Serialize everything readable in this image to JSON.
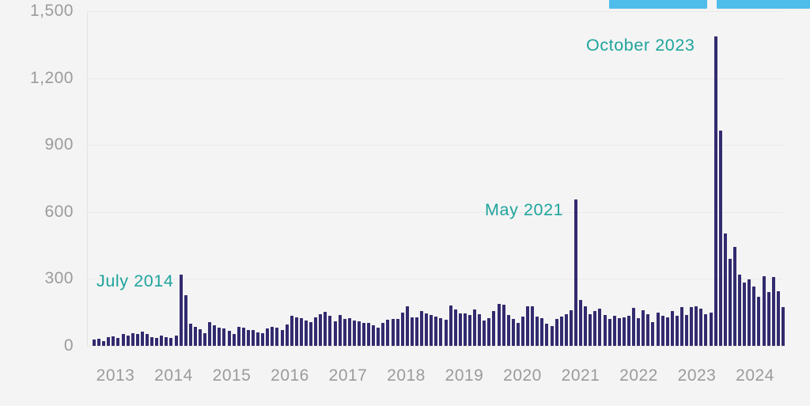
{
  "header": {
    "top_right_chips": [
      {
        "name": "chip-1",
        "label": "",
        "color": "#4fbde9"
      },
      {
        "name": "chip-2",
        "label": "",
        "color": "#4fbde9"
      }
    ]
  },
  "chart_data": {
    "type": "bar",
    "title": "",
    "xlabel": "",
    "ylabel": "",
    "x_start": "2013-01",
    "x_freq": "monthly",
    "x_end": "2024-12",
    "categories_note": "144 monthly bars from Jan 2013 to Dec 2024",
    "values": [
      30,
      33,
      21,
      40,
      42,
      34,
      52,
      46,
      58,
      52,
      63,
      53,
      39,
      37,
      47,
      40,
      34,
      46,
      320,
      226,
      98,
      86,
      75,
      57,
      106,
      92,
      83,
      78,
      66,
      53,
      85,
      82,
      72,
      70,
      60,
      57,
      79,
      85,
      82,
      71,
      96,
      135,
      127,
      124,
      112,
      106,
      129,
      141,
      151,
      134,
      110,
      140,
      122,
      125,
      112,
      109,
      104,
      104,
      92,
      82,
      102,
      116,
      121,
      122,
      149,
      179,
      128,
      128,
      155,
      147,
      139,
      131,
      124,
      117,
      181,
      164,
      147,
      147,
      138,
      163,
      141,
      115,
      125,
      155,
      187,
      183,
      137,
      119,
      104,
      130,
      176,
      177,
      131,
      124,
      100,
      88,
      119,
      131,
      143,
      161,
      656,
      205,
      179,
      143,
      155,
      167,
      137,
      122,
      134,
      125,
      128,
      134,
      169,
      124,
      161,
      141,
      108,
      149,
      136,
      127,
      155,
      134,
      175,
      137,
      173,
      179,
      167,
      143,
      148,
      1385,
      965,
      505,
      390,
      443,
      320,
      283,
      298,
      266,
      220,
      312,
      240,
      308,
      244,
      175
    ],
    "y_axis": {
      "ticks": [
        0,
        300,
        600,
        900,
        1200,
        1500
      ],
      "tick_labels": [
        "0",
        "300",
        "600",
        "900",
        "1,200",
        "1,500"
      ],
      "ylim": [
        0,
        1500
      ],
      "grid": true
    },
    "x_axis": {
      "tick_labels": [
        "2013",
        "2014",
        "2015",
        "2016",
        "2017",
        "2018",
        "2019",
        "2020",
        "2021",
        "2022",
        "2023",
        "2024"
      ]
    },
    "annotations": [
      {
        "label": "July 2014",
        "month": "2014-07",
        "value": 320
      },
      {
        "label": "May 2021",
        "month": "2021-05",
        "value": 656
      },
      {
        "label": "October 2023",
        "month": "2023-10",
        "value": 1385
      }
    ],
    "legend": "none",
    "colors": {
      "bar": "#322b6f",
      "annotation": "#1fa49c",
      "axis_text": "#9b9b9b",
      "gridline": "#eaeaea",
      "background": "#f4f4f4",
      "chip_blue": "#4fbde9"
    }
  }
}
